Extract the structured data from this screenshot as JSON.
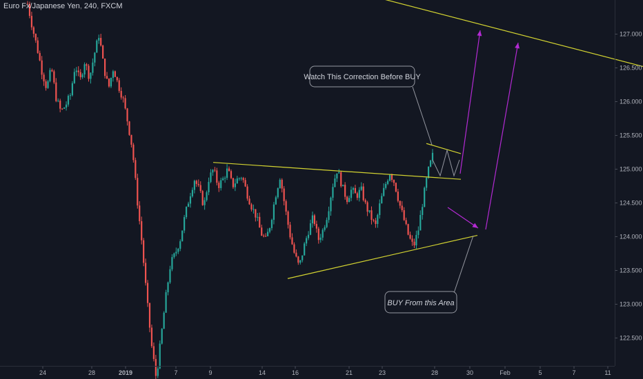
{
  "header": {
    "symbol": "Euro Fx/Japanese Yen",
    "interval": "240",
    "exchange": "FXCM"
  },
  "annotations": {
    "correction_note": "Watch This Correction Before BUY",
    "buy_note": "BUY From this Area"
  },
  "colors": {
    "background": "#131722",
    "up_candle": "#26a69a",
    "down_candle": "#ef5350",
    "trendline": "#d4d431",
    "arrow": "#b42ad4",
    "axis_text": "#b2b5be"
  },
  "chart_data": {
    "type": "candlestick",
    "title": "Euro Fx/Japanese Yen, 240, FXCM",
    "ylim": [
      122.1,
      127.35
    ],
    "y_ticks": [
      "127.000",
      "126.500",
      "126.000",
      "125.500",
      "125.000",
      "124.500",
      "124.000",
      "123.500",
      "123.000",
      "122.500"
    ],
    "x_ticks": [
      "24",
      "28",
      "2019",
      "7",
      "9",
      "14",
      "16",
      "21",
      "23",
      "28",
      "30",
      "Feb",
      "5",
      "7",
      "11"
    ],
    "grid": false,
    "price_path": [
      127.45,
      127.1,
      126.8,
      126.45,
      126.2,
      126.5,
      126.05,
      125.85,
      125.95,
      126.1,
      126.55,
      126.3,
      126.6,
      126.35,
      126.7,
      127.0,
      126.5,
      126.2,
      126.5,
      126.25,
      126.05,
      125.7,
      125.3,
      124.55,
      123.9,
      123.1,
      122.4,
      121.9,
      122.5,
      123.1,
      123.6,
      123.75,
      123.95,
      124.3,
      124.6,
      124.85,
      124.7,
      124.45,
      124.85,
      125.0,
      124.75,
      124.85,
      125.0,
      124.75,
      124.85,
      124.9,
      124.65,
      124.45,
      124.3,
      124.05,
      123.95,
      124.2,
      124.6,
      124.9,
      124.45,
      124.05,
      123.75,
      123.55,
      123.85,
      124.1,
      124.3,
      123.95,
      124.1,
      124.35,
      124.75,
      125.0,
      124.75,
      124.55,
      124.7,
      124.6,
      124.7,
      124.45,
      124.3,
      124.15,
      124.5,
      124.75,
      124.95,
      124.8,
      124.5,
      124.25,
      124.0,
      123.85,
      124.1,
      124.55,
      124.95,
      125.2
    ],
    "trendlines": [
      {
        "from": [
          "9",
          125.1
        ],
        "to": [
          "28",
          124.85
        ]
      },
      {
        "from": [
          "16",
          123.38
        ],
        "to": [
          "30",
          124.02
        ]
      },
      {
        "from": [
          "28",
          125.38
        ],
        "to": [
          "30",
          125.23
        ]
      },
      {
        "from": [
          "28",
          127.52
        ],
        "to": [
          "11",
          126.52
        ]
      }
    ]
  }
}
